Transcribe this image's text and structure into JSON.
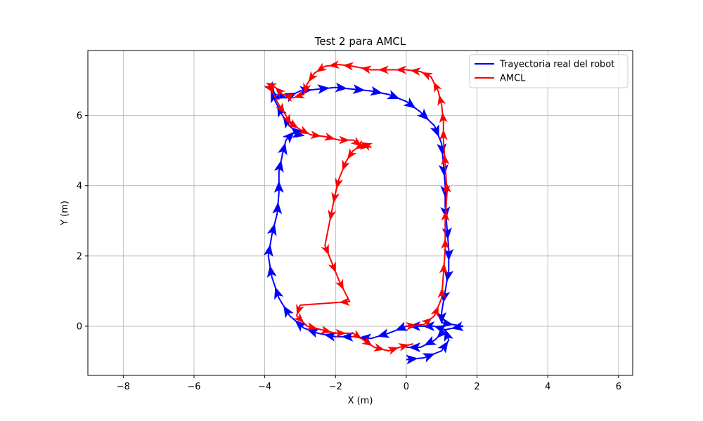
{
  "chart_data": {
    "type": "line",
    "title": "Test 2 para AMCL",
    "xlabel": "X (m)",
    "ylabel": "Y (m)",
    "xlim": [
      -9.0,
      6.4
    ],
    "ylim": [
      -1.4,
      7.85
    ],
    "xticks": [
      -8,
      -6,
      -4,
      -2,
      0,
      2,
      4,
      6
    ],
    "yticks": [
      0,
      2,
      4,
      6
    ],
    "xtick_labels": [
      "−8",
      "−6",
      "−4",
      "−2",
      "0",
      "2",
      "4",
      "6"
    ],
    "ytick_labels": [
      "0",
      "2",
      "4",
      "6"
    ],
    "grid": true,
    "legend_position": "top-right",
    "series": [
      {
        "name": "Trayectoria real del robot",
        "color": "#0000ff",
        "x": [
          0.0,
          0.5,
          1.0,
          1.2,
          1.1,
          0.8,
          0.4,
          0.0,
          -0.5,
          -1.0,
          -1.5,
          -2.0,
          -2.5,
          -2.9,
          -3.3,
          -3.6,
          -3.8,
          -3.9,
          -3.8,
          -3.65,
          -3.6,
          -3.6,
          -3.5,
          -3.4,
          -3.2,
          -3.0,
          -3.3,
          -3.5,
          -3.7,
          -3.9,
          -3.7,
          -3.4,
          -3.0,
          -2.5,
          -2.0,
          -1.5,
          -1.0,
          -0.5,
          0.0,
          0.4,
          0.8,
          1.0,
          1.05,
          1.1,
          1.1,
          1.15,
          1.2,
          1.2,
          1.1,
          1.0,
          1.0,
          1.6,
          1.1,
          0.8,
          0.4,
          0.0
        ],
        "y": [
          -0.95,
          -0.9,
          -0.7,
          -0.4,
          -0.1,
          0.0,
          0.0,
          0.0,
          -0.2,
          -0.35,
          -0.3,
          -0.3,
          -0.2,
          -0.05,
          0.3,
          0.8,
          1.4,
          2.0,
          2.6,
          3.2,
          3.8,
          4.4,
          4.9,
          5.3,
          5.5,
          5.45,
          5.7,
          6.0,
          6.4,
          6.9,
          6.6,
          6.5,
          6.7,
          6.75,
          6.8,
          6.75,
          6.7,
          6.6,
          6.4,
          6.1,
          5.7,
          5.2,
          4.6,
          4.0,
          3.4,
          2.8,
          2.2,
          1.6,
          1.0,
          0.4,
          0.1,
          0.0,
          -0.1,
          -0.4,
          -0.6,
          -0.6
        ]
      },
      {
        "name": "AMCL",
        "color": "#ff0000",
        "x": [
          0.0,
          0.5,
          0.8,
          1.0,
          1.05,
          1.1,
          1.1,
          1.15,
          1.1,
          1.05,
          1.05,
          1.0,
          0.9,
          0.7,
          0.4,
          0.0,
          -0.5,
          -1.0,
          -1.5,
          -1.9,
          -2.3,
          -2.6,
          -2.8,
          -2.9,
          -3.2,
          -3.5,
          -3.7,
          -3.9,
          -3.6,
          -3.4,
          -3.3,
          -3.0,
          -2.7,
          -2.3,
          -1.9,
          -1.5,
          -1.3,
          -1.0,
          -1.2,
          -1.5,
          -1.7,
          -1.9,
          -2.0,
          -2.1,
          -2.3,
          -2.1,
          -1.9,
          -1.6,
          -3.0,
          -3.1,
          -2.8,
          -2.4,
          -2.0,
          -1.5,
          -1.2,
          -0.9,
          -0.5,
          -0.2,
          0.2
        ],
        "y": [
          0.0,
          0.05,
          0.3,
          0.8,
          1.5,
          2.2,
          3.0,
          3.8,
          4.6,
          5.3,
          5.8,
          6.3,
          6.7,
          7.1,
          7.25,
          7.3,
          7.3,
          7.3,
          7.4,
          7.45,
          7.4,
          7.2,
          6.9,
          6.6,
          6.5,
          6.6,
          6.8,
          6.9,
          6.3,
          6.0,
          5.8,
          5.6,
          5.45,
          5.4,
          5.3,
          5.3,
          5.15,
          5.1,
          5.2,
          5.0,
          4.7,
          4.2,
          3.8,
          3.3,
          2.3,
          1.8,
          1.3,
          0.7,
          0.6,
          0.3,
          0.0,
          -0.1,
          -0.2,
          -0.2,
          -0.4,
          -0.6,
          -0.7,
          -0.6,
          -0.5
        ]
      }
    ]
  }
}
